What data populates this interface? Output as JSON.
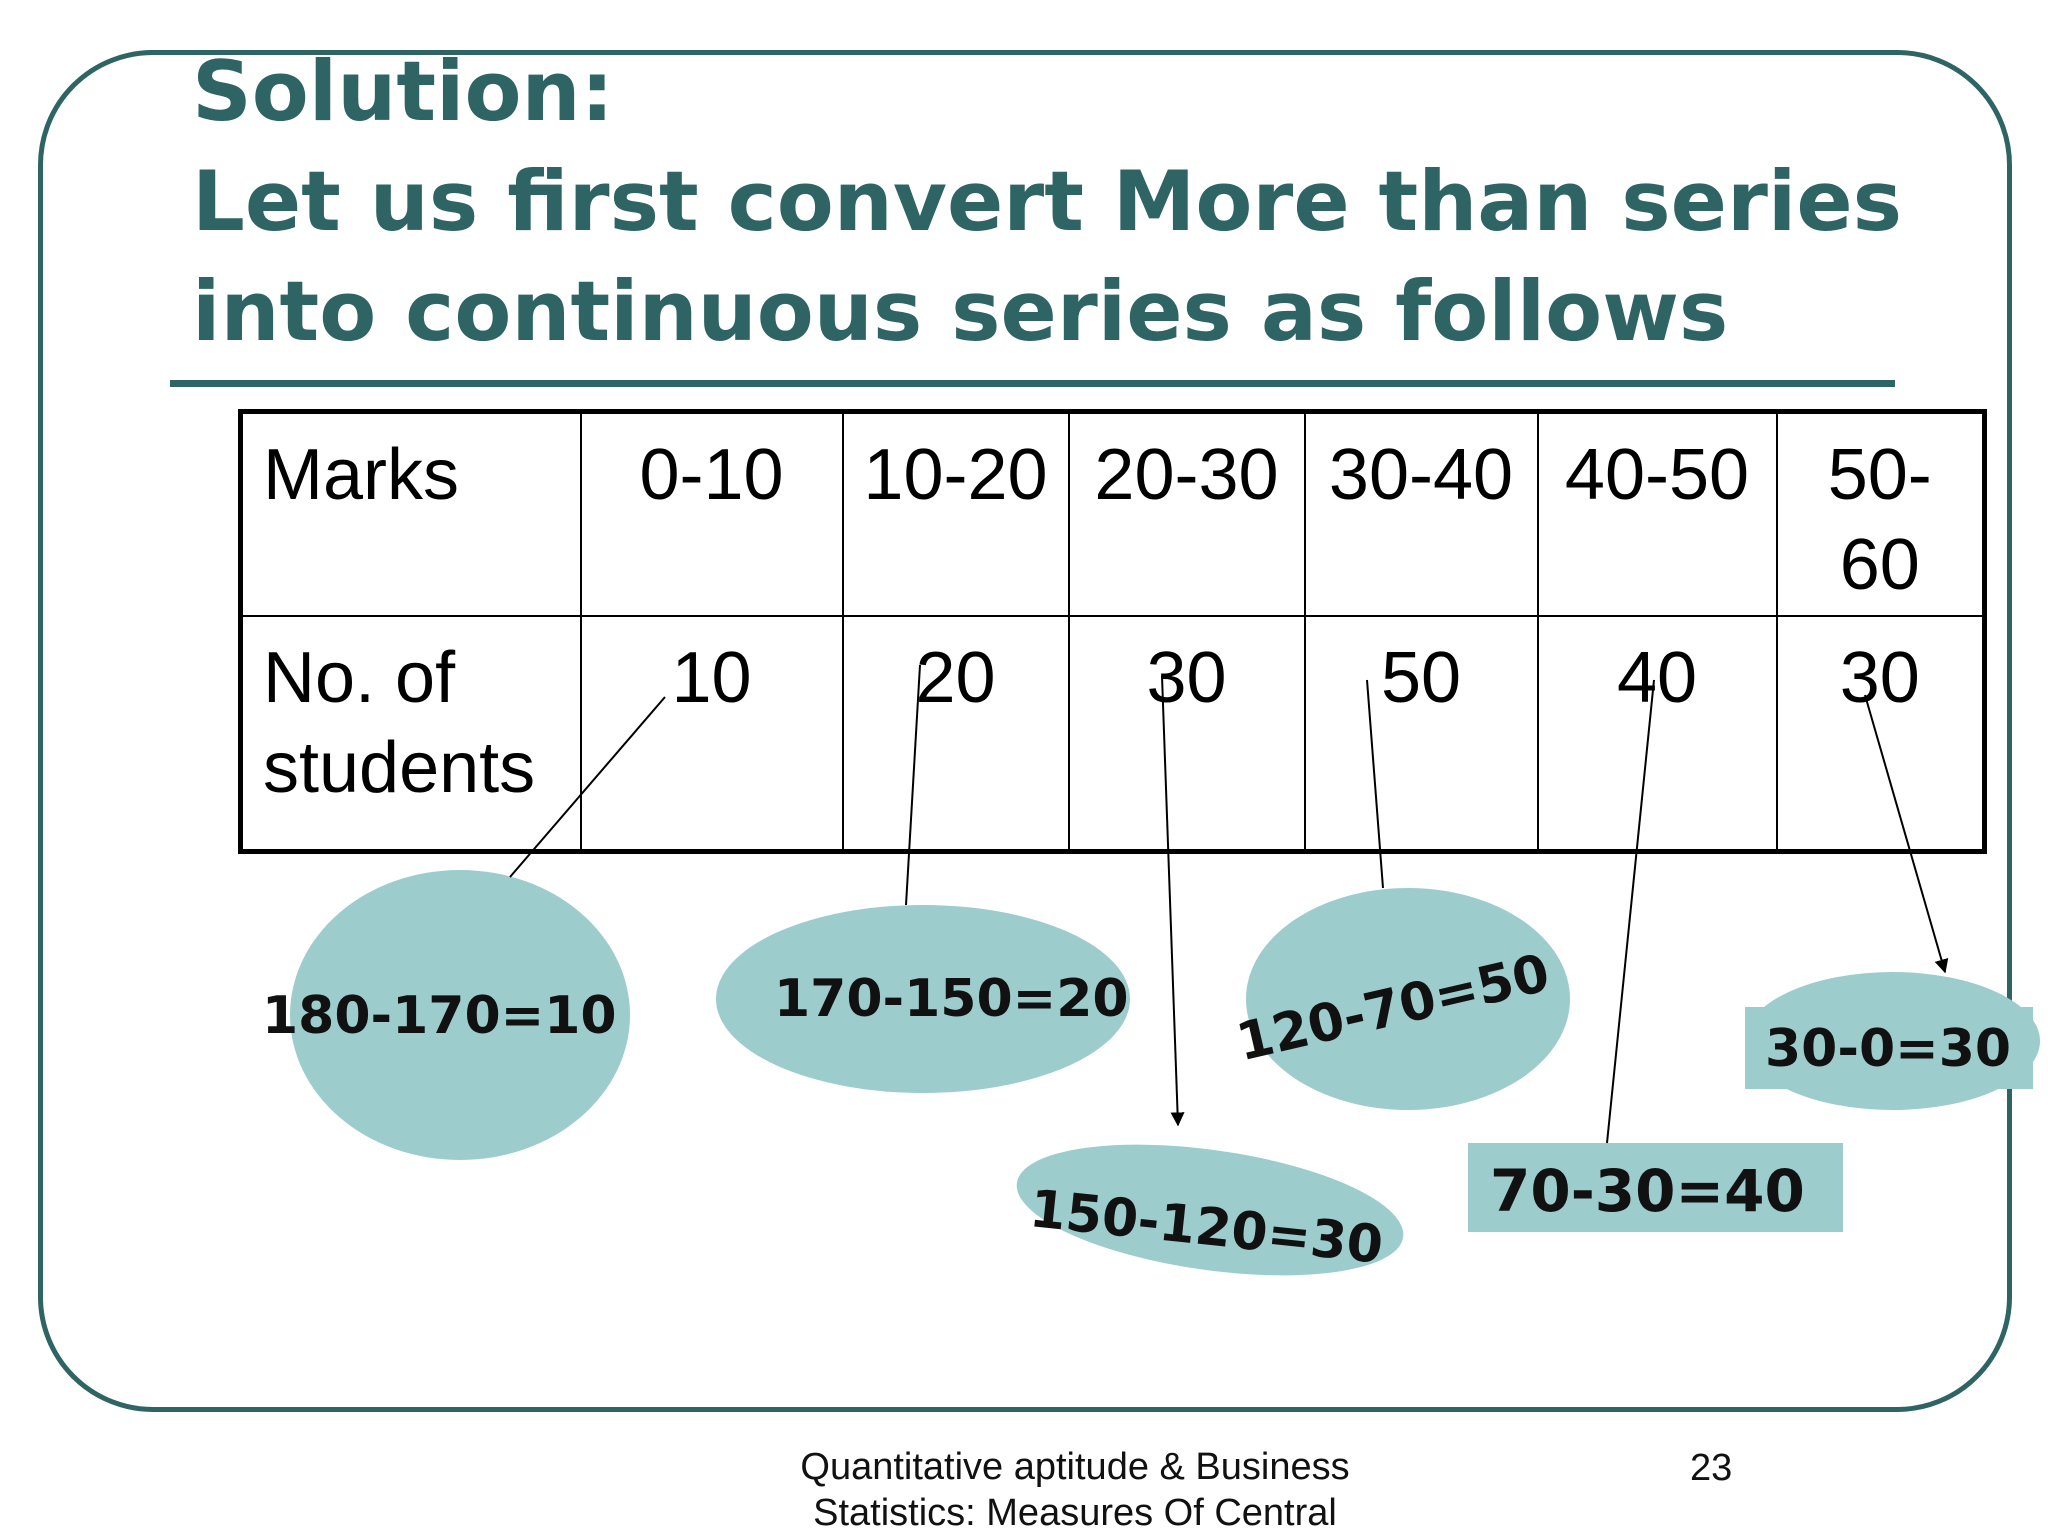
{
  "slide": {
    "title_lines": [
      "Solution:",
      "Let us first convert More than series",
      "into continuous series as follows"
    ]
  },
  "table": {
    "row_headers": [
      "Marks",
      "No. of students"
    ],
    "marks": [
      "0-10",
      "10-20",
      "20-30",
      "30-40",
      "40-50",
      "50-60"
    ],
    "students": [
      "10",
      "20",
      "30",
      "50",
      "40",
      "30"
    ]
  },
  "callouts": [
    "180-170=10",
    "170-150=20",
    "150-120=30",
    "120-70=50",
    "70-30=40",
    "30-0=30"
  ],
  "footer": {
    "text": "Quantitative aptitude & Business Statistics: Measures Of Central",
    "page_number": "23"
  },
  "colors": {
    "accent": "#2e6463",
    "callout_fill": "#9ccccc"
  }
}
